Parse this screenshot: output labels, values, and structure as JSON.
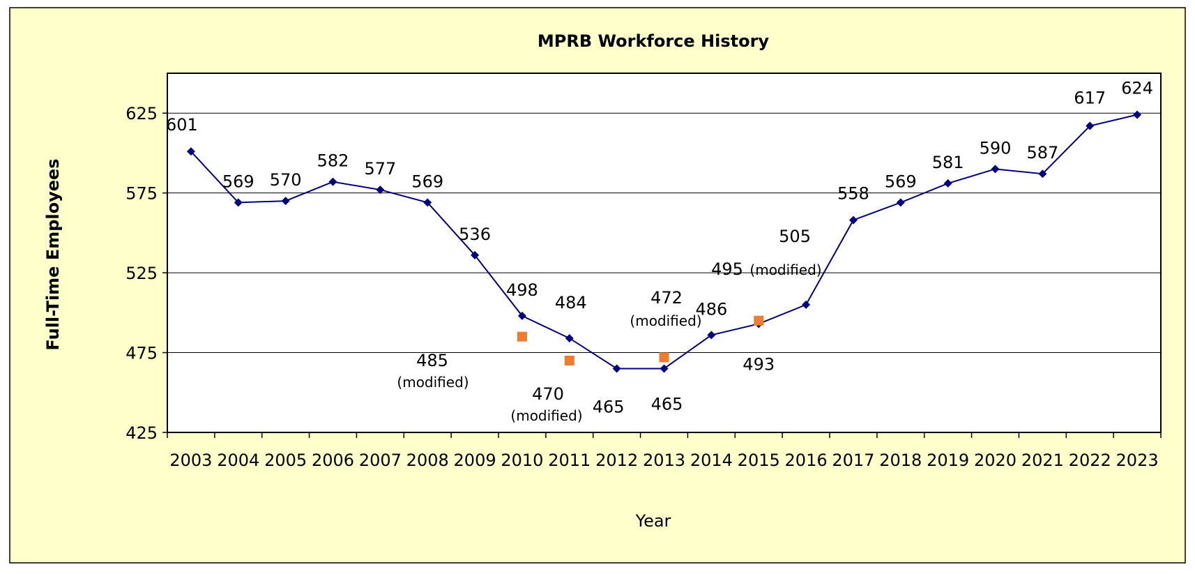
{
  "chart_data": {
    "type": "line",
    "title": "MPRB Workforce History",
    "xlabel": "Year",
    "ylabel": "Full-Time Employees",
    "ylim": [
      425,
      650
    ],
    "yticks": [
      425,
      475,
      525,
      575,
      625
    ],
    "grid": true,
    "background_color": "#ffffcc",
    "plot_background_color": "#ffffff",
    "categories": [
      "2003",
      "2004",
      "2005",
      "2006",
      "2007",
      "2008",
      "2009",
      "2010",
      "2011",
      "2012",
      "2013",
      "2014",
      "2015",
      "2016",
      "2017",
      "2018",
      "2019",
      "2020",
      "2021",
      "2022",
      "2023"
    ],
    "series": [
      {
        "color": "#000080",
        "marker": "diamond",
        "values": [
          601,
          569,
          570,
          582,
          577,
          569,
          536,
          498,
          484,
          465,
          465,
          486,
          493,
          505,
          558,
          569,
          581,
          590,
          587,
          617,
          624
        ],
        "labels": [
          "601",
          "569",
          "570",
          "582",
          "577",
          "569",
          "536",
          "498",
          "484",
          "465",
          "465",
          "486",
          "493",
          "505",
          "558",
          "569",
          "581",
          "590",
          "587",
          "617",
          "624"
        ]
      },
      {
        "color": "#ed7d31",
        "marker": "square",
        "line": false,
        "points": [
          {
            "x": "2010",
            "y": 485,
            "label": "485",
            "note": "(modified)"
          },
          {
            "x": "2011",
            "y": 470,
            "label": "470",
            "note": "(modified)"
          },
          {
            "x": "2013",
            "y": 472,
            "label": "472",
            "note": "(modified)"
          },
          {
            "x": "2015",
            "y": 495,
            "label": "495",
            "note": "(modified)"
          }
        ]
      }
    ]
  }
}
